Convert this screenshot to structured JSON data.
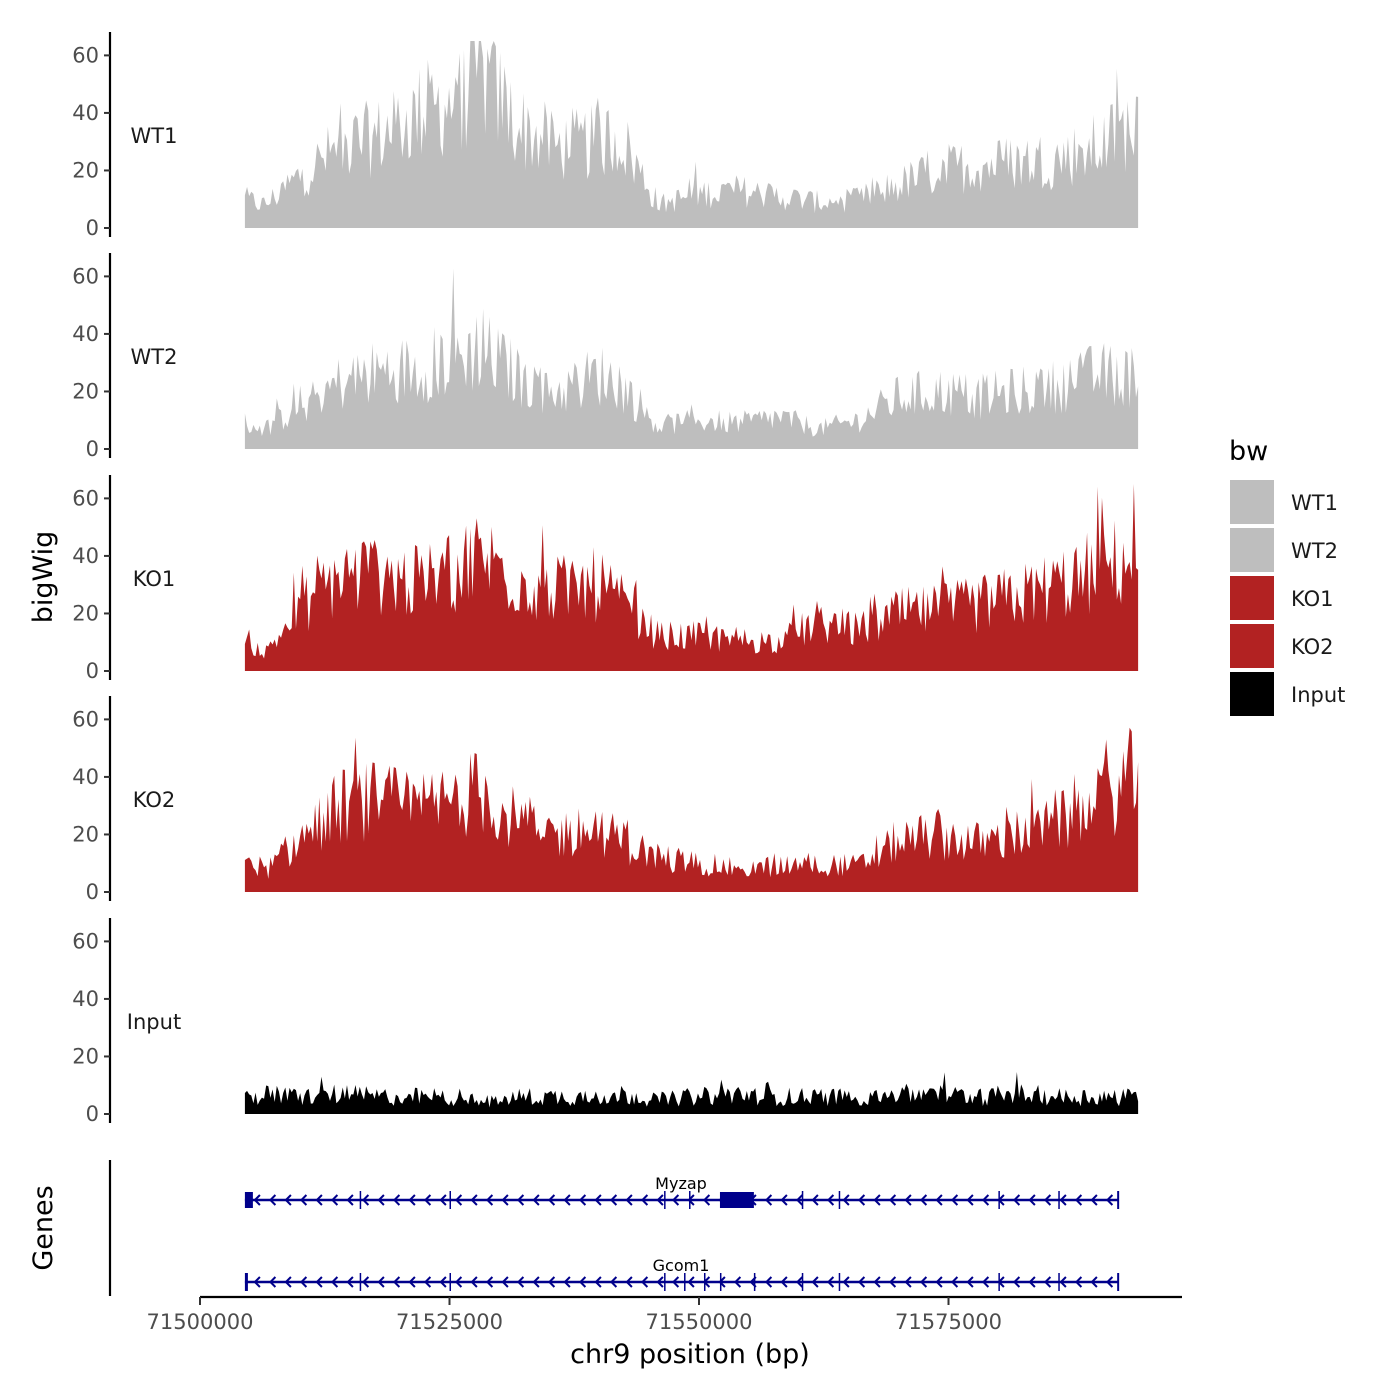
{
  "chart_data": {
    "type": "area",
    "chromosome": "chr9",
    "region": {
      "start": 71504500,
      "end": 71594000
    },
    "y_axis_title": "bigWig",
    "x_axis_title": "chr9 position (bp)",
    "genes_panel_title": "Genes",
    "ylim": [
      0,
      65
    ],
    "y_ticks": [
      0,
      20,
      40,
      60
    ],
    "x_ticks": [
      71500000,
      71525000,
      71550000,
      71575000
    ],
    "x_tick_labels": [
      "71500000",
      "71525000",
      "71550000",
      "71575000"
    ],
    "legend": {
      "title": "bw",
      "entries": [
        {
          "name": "WT1",
          "color": "#bebebe"
        },
        {
          "name": "WT2",
          "color": "#bebebe"
        },
        {
          "name": "KO1",
          "color": "#b22222"
        },
        {
          "name": "KO2",
          "color": "#b22222"
        },
        {
          "name": "Input",
          "color": "#000000"
        }
      ]
    },
    "tracks": [
      {
        "name": "WT1",
        "color": "#bebebe",
        "x": [
          71504500,
          71506500,
          71510000,
          71514000,
          71518000,
          71522000,
          71526000,
          71528000,
          71532000,
          71536000,
          71540000,
          71542000,
          71546000,
          71550000,
          71554000,
          71558000,
          71562000,
          71566000,
          71570000,
          71574000,
          71578000,
          71582000,
          71586000,
          71590000,
          71594000
        ],
        "y": [
          10,
          8,
          18,
          28,
          32,
          40,
          45,
          55,
          35,
          28,
          30,
          32,
          8,
          12,
          13,
          11,
          9,
          10,
          15,
          20,
          22,
          23,
          24,
          28,
          37
        ]
      },
      {
        "name": "WT2",
        "color": "#bebebe",
        "x": [
          71504500,
          71506500,
          71510000,
          71514000,
          71518000,
          71522000,
          71526000,
          71528000,
          71532000,
          71536000,
          71540000,
          71542000,
          71546000,
          71550000,
          71554000,
          71558000,
          71562000,
          71566000,
          71570000,
          71574000,
          71578000,
          71582000,
          71586000,
          71590000,
          71594000
        ],
        "y": [
          9,
          7,
          15,
          23,
          27,
          28,
          32,
          35,
          25,
          20,
          26,
          23,
          8,
          10,
          9,
          11,
          7,
          10,
          18,
          20,
          18,
          20,
          22,
          26,
          25
        ]
      },
      {
        "name": "KO1",
        "color": "#b22222",
        "x": [
          71504500,
          71506500,
          71510000,
          71514000,
          71518000,
          71522000,
          71526000,
          71528000,
          71532000,
          71536000,
          71540000,
          71542000,
          71546000,
          71550000,
          71554000,
          71558000,
          71562000,
          71566000,
          71570000,
          71574000,
          71578000,
          71582000,
          71586000,
          71590000,
          71594000
        ],
        "y": [
          12,
          6,
          22,
          33,
          34,
          30,
          36,
          40,
          32,
          28,
          30,
          24,
          12,
          12,
          11,
          10,
          17,
          14,
          20,
          21,
          23,
          26,
          30,
          35,
          40
        ]
      },
      {
        "name": "KO2",
        "color": "#b22222",
        "x": [
          71504500,
          71506500,
          71510000,
          71514000,
          71518000,
          71522000,
          71526000,
          71528000,
          71532000,
          71536000,
          71540000,
          71542000,
          71546000,
          71550000,
          71554000,
          71558000,
          71562000,
          71566000,
          71570000,
          71574000,
          71578000,
          71582000,
          71586000,
          71590000,
          71594000
        ],
        "y": [
          14,
          7,
          18,
          30,
          32,
          28,
          33,
          35,
          24,
          20,
          22,
          18,
          12,
          10,
          8,
          9,
          10,
          9,
          18,
          20,
          17,
          20,
          24,
          30,
          42
        ]
      },
      {
        "name": "Input",
        "color": "#000000",
        "x": [
          71504500,
          71506500,
          71510000,
          71514000,
          71518000,
          71522000,
          71526000,
          71528000,
          71532000,
          71536000,
          71540000,
          71542000,
          71546000,
          71550000,
          71554000,
          71558000,
          71562000,
          71566000,
          71570000,
          71574000,
          71578000,
          71582000,
          71586000,
          71590000,
          71594000
        ],
        "y": [
          5,
          7,
          6,
          7,
          6,
          6,
          6,
          4,
          6,
          6,
          6,
          7,
          5,
          6,
          7,
          6,
          6,
          6,
          7,
          7,
          6,
          7,
          6,
          6,
          6
        ]
      }
    ],
    "genes": [
      {
        "name": "Myzap",
        "color": "#00008b",
        "strand": "-",
        "start": 71504500,
        "end": 71592000,
        "exons": [
          [
            71504500,
            71505300
          ],
          [
            71516000,
            71516100
          ],
          [
            71525000,
            71525100
          ],
          [
            71546500,
            71546600
          ],
          [
            71549000,
            71549100
          ],
          [
            71552100,
            71555500
          ],
          [
            71560300,
            71560400
          ],
          [
            71564000,
            71564100
          ],
          [
            71580000,
            71580100
          ],
          [
            71586000,
            71586100
          ]
        ]
      },
      {
        "name": "Gcom1",
        "color": "#00008b",
        "strand": "-",
        "start": 71504500,
        "end": 71592000,
        "exons": [
          [
            71504500,
            71504800
          ],
          [
            71516000,
            71516100
          ],
          [
            71525000,
            71525100
          ],
          [
            71546500,
            71546600
          ],
          [
            71548500,
            71548600
          ],
          [
            71550500,
            71550600
          ],
          [
            71552100,
            71552200
          ],
          [
            71555500,
            71555600
          ],
          [
            71560300,
            71560400
          ],
          [
            71564000,
            71564100
          ],
          [
            71580000,
            71580100
          ],
          [
            71586000,
            71586100
          ]
        ]
      }
    ]
  }
}
